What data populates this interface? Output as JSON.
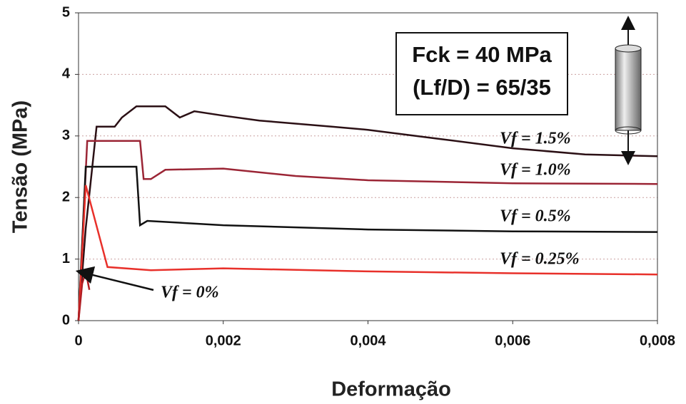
{
  "chart_data": {
    "type": "line",
    "xlabel": "Deformação",
    "ylabel": "Tensão (MPa)",
    "annotations": [
      "Fck = 40 MPa",
      "(Lf/D) = 65/35"
    ],
    "xlim": [
      0,
      0.008
    ],
    "ylim": [
      0,
      5
    ],
    "xticks": [
      {
        "value": 0,
        "label": "0"
      },
      {
        "value": 0.002,
        "label": "0,002"
      },
      {
        "value": 0.004,
        "label": "0,004"
      },
      {
        "value": 0.006,
        "label": "0,006"
      },
      {
        "value": 0.008,
        "label": "0,008"
      }
    ],
    "yticks": [
      0,
      1,
      2,
      3,
      4,
      5
    ],
    "grid": true,
    "series": [
      {
        "name": "Vf = 1.5%",
        "color": "#2b1015",
        "x": [
          0,
          0.0001,
          0.00025,
          0.0005,
          0.0006,
          0.0008,
          0.0012,
          0.0014,
          0.0016,
          0.002,
          0.0025,
          0.0035,
          0.004,
          0.005,
          0.006,
          0.007,
          0.008
        ],
        "values": [
          0,
          1.5,
          3.15,
          3.15,
          3.3,
          3.48,
          3.48,
          3.3,
          3.4,
          3.33,
          3.25,
          3.15,
          3.1,
          2.95,
          2.8,
          2.7,
          2.67
        ]
      },
      {
        "name": "Vf = 1.0%",
        "color": "#9b2535",
        "x": [
          0,
          0.00012,
          0.00085,
          0.0009,
          0.001,
          0.0012,
          0.002,
          0.003,
          0.004,
          0.006,
          0.008
        ],
        "values": [
          0,
          2.92,
          2.92,
          2.3,
          2.3,
          2.45,
          2.47,
          2.35,
          2.28,
          2.23,
          2.22
        ]
      },
      {
        "name": "Vf = 0.5%",
        "color": "#111111",
        "x": [
          0,
          0.0001,
          0.0008,
          0.00085,
          0.00095,
          0.002,
          0.004,
          0.006,
          0.008
        ],
        "values": [
          0,
          2.5,
          2.5,
          1.55,
          1.62,
          1.55,
          1.48,
          1.45,
          1.44
        ]
      },
      {
        "name": "Vf = 0.25%",
        "color": "#e8302a",
        "x": [
          0,
          0.0001,
          0.0004,
          0.001,
          0.002,
          0.004,
          0.006,
          0.008
        ],
        "values": [
          0,
          2.2,
          0.87,
          0.82,
          0.85,
          0.8,
          0.77,
          0.75
        ]
      },
      {
        "name": "Vf = 0%",
        "color": "#b01e24",
        "x": [
          0,
          5e-05,
          0.0001,
          0.00015
        ],
        "values": [
          0,
          0.6,
          0.8,
          0.5
        ]
      }
    ]
  }
}
